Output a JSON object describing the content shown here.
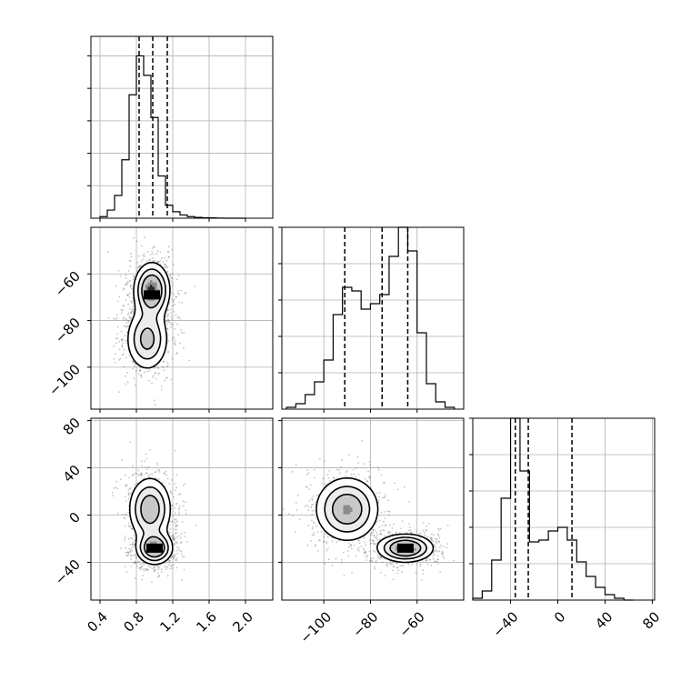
{
  "chart_data": {
    "type": "corner",
    "parameters": 3,
    "grid": true,
    "colors": {
      "line": "#000000",
      "grid": "#b0b0b0",
      "points": "#555555"
    },
    "axes": {
      "p0": {
        "range": [
          0.3,
          2.3
        ],
        "ticks": [
          0.4,
          0.8,
          1.2,
          1.6,
          2.0
        ],
        "tick_labels": [
          "0.4",
          "0.8",
          "1.2",
          "1.6",
          "2.0"
        ]
      },
      "p1": {
        "range": [
          -118,
          -40
        ],
        "ticks": [
          -100,
          -80,
          -60
        ],
        "tick_labels": [
          "−100",
          "−80",
          "−60"
        ]
      },
      "p2": {
        "range": [
          -72,
          82
        ],
        "ticks": [
          -40,
          0,
          40,
          80
        ],
        "tick_labels": [
          "−40",
          "0",
          "40",
          "80"
        ]
      }
    },
    "diag_max": {
      "p0": 1.12,
      "p1": 1.0,
      "p2": 1.0
    },
    "histograms": {
      "p0": {
        "edges": [
          0.4,
          0.48,
          0.56,
          0.64,
          0.72,
          0.8,
          0.88,
          0.96,
          1.04,
          1.12,
          1.2,
          1.28,
          1.36,
          1.44,
          1.52,
          1.6,
          1.68,
          1.76,
          1.84,
          2.0
        ],
        "counts": [
          0.01,
          0.05,
          0.14,
          0.36,
          0.76,
          1.0,
          0.88,
          0.62,
          0.26,
          0.08,
          0.04,
          0.02,
          0.01,
          0.005,
          0.003,
          0.002,
          0.001,
          0.0,
          0.0
        ],
        "quantiles": [
          0.83,
          0.98,
          1.14
        ]
      },
      "p1": {
        "edges": [
          -116,
          -112,
          -108,
          -104,
          -100,
          -96,
          -92,
          -88,
          -84,
          -80,
          -76,
          -72,
          -68,
          -64,
          -60,
          -56,
          -52,
          -48,
          -44
        ],
        "counts": [
          0.01,
          0.03,
          0.08,
          0.15,
          0.27,
          0.52,
          0.67,
          0.65,
          0.55,
          0.58,
          0.63,
          0.84,
          1.0,
          0.87,
          0.42,
          0.14,
          0.04,
          0.01
        ],
        "quantiles": [
          -91,
          -75,
          -64
        ]
      },
      "p2": {
        "edges": [
          -72,
          -64,
          -56,
          -48,
          -40,
          -32,
          -24,
          -16,
          -8,
          0,
          8,
          16,
          24,
          32,
          40,
          48,
          56,
          64
        ],
        "counts": [
          0.01,
          0.05,
          0.22,
          0.56,
          1.0,
          0.71,
          0.32,
          0.33,
          0.38,
          0.4,
          0.33,
          0.21,
          0.13,
          0.07,
          0.03,
          0.01,
          0.0
        ],
        "quantiles": [
          -36,
          -25,
          12
        ]
      }
    },
    "joint": {
      "p1_vs_p0": {
        "modes": [
          {
            "x": 0.97,
            "y": -67,
            "sx": 0.1,
            "sy": 6,
            "w": 0.6
          },
          {
            "x": 0.92,
            "y": -88,
            "sx": 0.12,
            "sy": 7,
            "w": 0.4
          }
        ],
        "peak": {
          "x": 0.97,
          "y": -69
        }
      },
      "p2_vs_p0": {
        "modes": [
          {
            "x": 0.95,
            "y": 5,
            "sx": 0.12,
            "sy": 14,
            "w": 0.45
          },
          {
            "x": 1.0,
            "y": -28,
            "sx": 0.1,
            "sy": 7,
            "w": 0.55
          }
        ],
        "peak": {
          "x": 1.0,
          "y": -28
        }
      },
      "p2_vs_p1": {
        "modes": [
          {
            "x": -90,
            "y": 5,
            "sx": 7,
            "sy": 14,
            "w": 0.45
          },
          {
            "x": -65,
            "y": -28,
            "sx": 6,
            "sy": 6,
            "w": 0.55
          }
        ],
        "peak": {
          "x": -65,
          "y": -28
        }
      }
    }
  }
}
